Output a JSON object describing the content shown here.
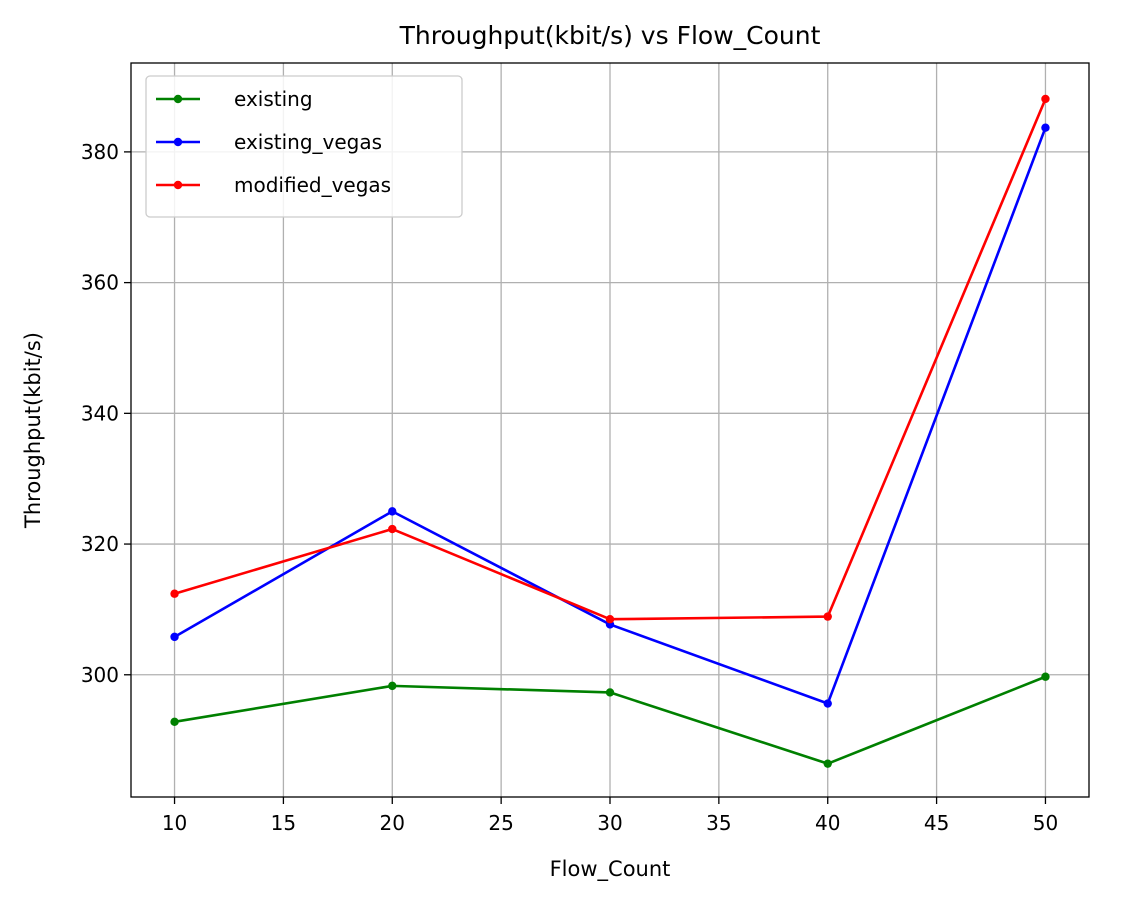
{
  "chart_data": {
    "type": "line",
    "title": "Throughput(kbit/s) vs Flow_Count",
    "xlabel": "Flow_Count",
    "ylabel": "Throughput(kbit/s)",
    "x": [
      10,
      20,
      30,
      40,
      50
    ],
    "xlim": [
      8,
      52
    ],
    "ylim": [
      281.3,
      393.6
    ],
    "xticks": [
      10,
      15,
      20,
      25,
      30,
      35,
      40,
      45,
      50
    ],
    "yticks": [
      300,
      320,
      340,
      360,
      380
    ],
    "grid": true,
    "legend_position": "top-left",
    "series": [
      {
        "name": "existing",
        "color": "#008000",
        "values": [
          292.8,
          298.3,
          297.3,
          286.4,
          299.7
        ]
      },
      {
        "name": "existing_vegas",
        "color": "#0000ff",
        "values": [
          305.8,
          325.0,
          307.7,
          295.6,
          383.7
        ]
      },
      {
        "name": "modified_vegas",
        "color": "#ff0000",
        "values": [
          312.4,
          322.3,
          308.5,
          308.9,
          388.1
        ]
      }
    ]
  }
}
